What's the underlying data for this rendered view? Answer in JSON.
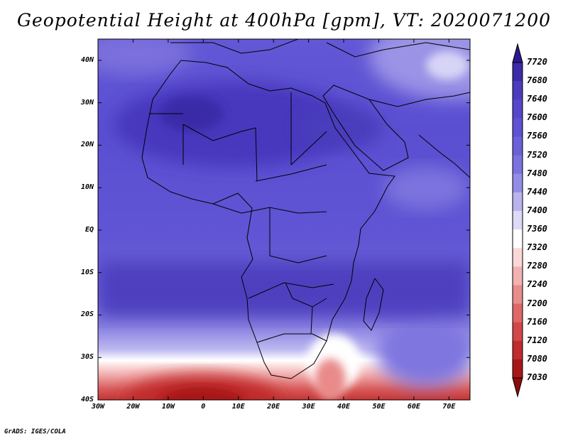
{
  "title": "Geopotential Height at 400hPa [gpm], VT: 2020071200",
  "credit": "GrADS: IGES/COLA",
  "map": {
    "variable": "Geopotential Height",
    "level": "400hPa",
    "units": "gpm",
    "valid_time": "2020071200",
    "lon_range": [
      -30,
      76
    ],
    "lat_range": [
      -40,
      45
    ],
    "lat_labels": [
      "40N",
      "30N",
      "20N",
      "10N",
      "EQ",
      "10S",
      "20S",
      "30S",
      "40S"
    ],
    "lat_values": [
      40,
      30,
      20,
      10,
      0,
      -10,
      -20,
      -30,
      -40
    ],
    "lon_labels": [
      "30W",
      "20W",
      "10W",
      "0",
      "10E",
      "20E",
      "30E",
      "40E",
      "50E",
      "60E",
      "70E"
    ],
    "lon_values": [
      -30,
      -20,
      -10,
      0,
      10,
      20,
      30,
      40,
      50,
      60,
      70
    ]
  },
  "colorbar": {
    "levels": [
      "7720",
      "7680",
      "7640",
      "7600",
      "7560",
      "7520",
      "7480",
      "7440",
      "7400",
      "7360",
      "7320",
      "7280",
      "7240",
      "7200",
      "7160",
      "7120",
      "7080",
      "7030"
    ],
    "colors": [
      "#2a1890",
      "#3b2ba6",
      "#4a3cbc",
      "#5646cb",
      "#5e51d2",
      "#6b60d8",
      "#7b72df",
      "#948de6",
      "#b9b4ef",
      "#dcdaf7",
      "#ffffff",
      "#fbd8d8",
      "#f3b2b2",
      "#e98c8c",
      "#de6767",
      "#d24747",
      "#c02b2b",
      "#a81717",
      "#8f0a0a"
    ]
  }
}
